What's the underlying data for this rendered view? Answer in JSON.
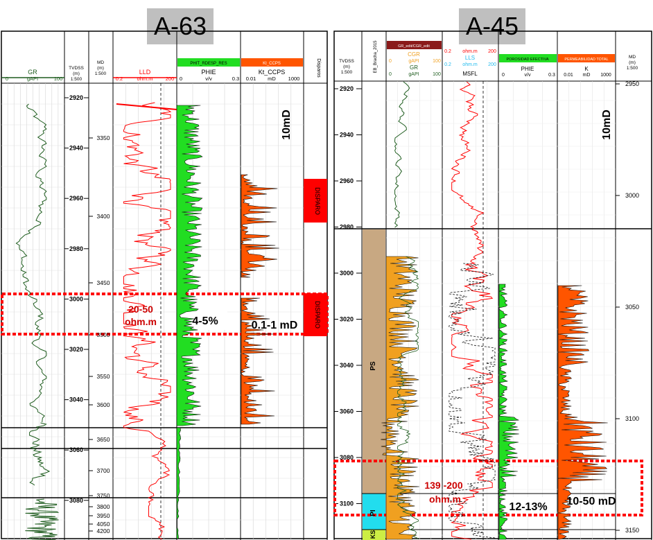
{
  "panels": [
    {
      "well": "A-63",
      "tracks": {
        "gr": {
          "title": "GR",
          "unit": "gAPI",
          "min": "0",
          "max": "100"
        },
        "tvdss": {
          "title": "TVDSS",
          "unit": "(m)",
          "scale": "1:500"
        },
        "md": {
          "title": "MD",
          "unit": "(m)",
          "scale": "1:500"
        },
        "res": {
          "title": "LLD",
          "min": "0.2",
          "unit": "ohm.m",
          "max": "200"
        },
        "phie": {
          "header": "PHIT_RDESP_RES",
          "title": "PHIE",
          "min": "0",
          "unit": "v/v",
          "max": "0.3"
        },
        "perm": {
          "header": "Kt_CCPS",
          "title": "Kt_CCPS",
          "min": "0.01",
          "unit": "mD",
          "max": "1000"
        },
        "disparos": {
          "title": "Disparos",
          "label": "DISPARO"
        }
      },
      "tvdss_ticks": [
        "2920",
        "2940",
        "2960",
        "2980",
        "3000",
        "3020",
        "3040",
        "3060",
        "3080"
      ],
      "md_ticks": [
        "3350",
        "3400",
        "3450",
        "3500",
        "3550",
        "3600",
        "3650",
        "3700",
        "3750",
        "3800",
        "3950",
        "4050",
        "4200"
      ],
      "annotations": {
        "res": [
          "20-50",
          "ohm.m"
        ],
        "phie": "4-5%",
        "perm": "0.1-1 mD",
        "cutoff": "10mD"
      }
    },
    {
      "well": "A-45",
      "tracks": {
        "zone": {
          "title": "EB_Bracha_2015",
          "labels": [
            "PS",
            "PI",
            "KS"
          ]
        },
        "gr": {
          "header": "GR_edit/CGR_edit",
          "title2": "CGR",
          "title": "GR",
          "min": "0",
          "unit": "gAPI",
          "max": "100"
        },
        "tvdss": {
          "title": "TVDSS",
          "unit": "(m)",
          "scale": "1:500"
        },
        "res": {
          "row1": [
            "0.2",
            "ohm.m",
            "200"
          ],
          "title1": "LLS",
          "row2": [
            "0.2",
            "ohm.m",
            "200"
          ],
          "title": "MSFL"
        },
        "phie": {
          "header": "POROSIDAD EFECTIVA",
          "title": "PHIE",
          "min": "0",
          "unit": "v/v",
          "max": "0.3"
        },
        "perm": {
          "header": "PERMEABILIDAD TOTAL",
          "title": "K",
          "min": "0.01",
          "unit": "mD",
          "max": "1000"
        },
        "md": {
          "title": "MD",
          "unit": "(m)",
          "scale": "1:500"
        }
      },
      "tvdss_ticks": [
        "2920",
        "2940",
        "2960",
        "2980",
        "3000",
        "3020",
        "3040",
        "3060",
        "3080",
        "3100"
      ],
      "md_ticks": [
        "2950",
        "3000",
        "3050",
        "3100",
        "3150"
      ],
      "annotations": {
        "res": [
          "139 -200",
          "ohm.m"
        ],
        "phie": "12-13%",
        "perm": "10-50 mD",
        "cutoff": "10mD"
      }
    }
  ],
  "colors": {
    "gr": "#1e5c1e",
    "res": "#ff0000",
    "phie": "#22dd22",
    "perm": "#ff5500",
    "cgr": "#f0a020",
    "zone_ps": "#c8a882",
    "zone_pi": "#22ddee",
    "zone_ks": "#ccee44",
    "box": "#ff0000"
  }
}
